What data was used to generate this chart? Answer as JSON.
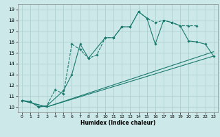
{
  "xlabel": "Humidex (Indice chaleur)",
  "bg_color": "#cce8e8",
  "line_color": "#1a7a6e",
  "grid_color": "#aacccc",
  "xlim": [
    -0.5,
    23.5
  ],
  "ylim": [
    9.5,
    19.5
  ],
  "xticks": [
    0,
    1,
    2,
    3,
    4,
    5,
    6,
    7,
    8,
    9,
    10,
    11,
    12,
    13,
    14,
    15,
    16,
    17,
    18,
    19,
    20,
    21,
    22,
    23
  ],
  "yticks": [
    10,
    11,
    12,
    13,
    14,
    15,
    16,
    17,
    18,
    19
  ],
  "lines": [
    {
      "x": [
        0,
        1,
        2,
        3,
        4,
        5,
        6,
        7,
        8,
        9,
        10,
        11,
        12,
        13,
        14,
        15,
        16,
        17,
        18,
        19,
        20,
        21
      ],
      "y": [
        10.6,
        10.5,
        10.0,
        10.1,
        11.6,
        11.2,
        15.8,
        15.3,
        14.5,
        14.8,
        16.4,
        16.4,
        17.4,
        17.4,
        18.8,
        18.2,
        17.8,
        18.0,
        17.8,
        17.5,
        17.5,
        17.5
      ],
      "marker": "D",
      "ms": 1.8,
      "lw": 0.8,
      "ls": "--"
    },
    {
      "x": [
        0,
        1,
        2,
        3,
        5,
        6,
        7,
        8,
        10,
        11,
        12,
        13,
        14,
        15,
        16,
        17,
        18,
        19,
        20,
        21,
        22,
        23
      ],
      "y": [
        10.6,
        10.5,
        10.0,
        10.1,
        11.5,
        13.0,
        15.8,
        14.5,
        16.4,
        16.4,
        17.4,
        17.4,
        18.8,
        18.2,
        15.8,
        18.0,
        17.8,
        17.5,
        16.1,
        16.0,
        15.8,
        14.7
      ],
      "marker": "D",
      "ms": 1.8,
      "lw": 0.8,
      "ls": "-"
    },
    {
      "x": [
        0,
        3,
        23
      ],
      "y": [
        10.6,
        10.0,
        14.7
      ],
      "marker": null,
      "ms": 0,
      "lw": 0.8,
      "ls": "-"
    },
    {
      "x": [
        0,
        3,
        23
      ],
      "y": [
        10.6,
        10.0,
        15.1
      ],
      "marker": null,
      "ms": 0,
      "lw": 0.8,
      "ls": "-"
    }
  ]
}
